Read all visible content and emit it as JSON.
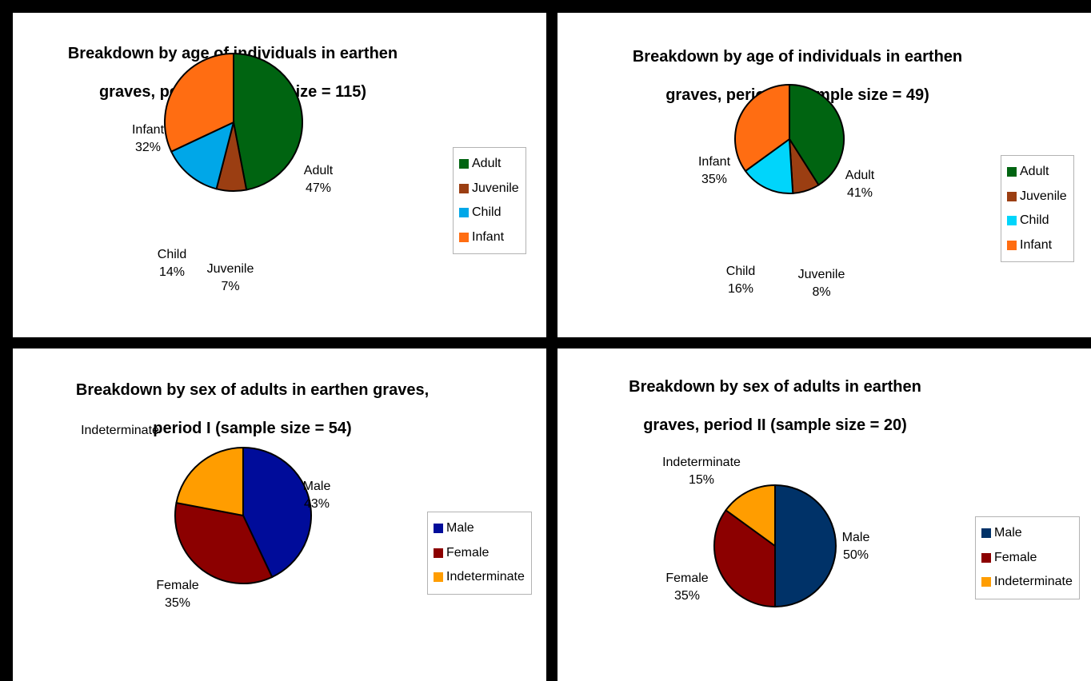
{
  "chart_data": [
    {
      "type": "pie",
      "title": "Breakdown by age of individuals in earthen graves, period I (sample size = 115)",
      "categories": [
        "Adult",
        "Juvenile",
        "Child",
        "Infant"
      ],
      "values": [
        47,
        7,
        14,
        32
      ],
      "value_labels": [
        "47%",
        "7%",
        "14%",
        "32%"
      ],
      "colors": [
        "#006411",
        "#9b3e12",
        "#00a7e8",
        "#ff6d12"
      ],
      "legend": "right"
    },
    {
      "type": "pie",
      "title": "Breakdown by age of individuals in earthen graves, period II (sample size = 49)",
      "categories": [
        "Adult",
        "Juvenile",
        "Child",
        "Infant"
      ],
      "values": [
        41,
        8,
        16,
        35
      ],
      "value_labels": [
        "41%",
        "8%",
        "16%",
        "35%"
      ],
      "colors": [
        "#006411",
        "#9b3e12",
        "#00d5fb",
        "#ff6d12"
      ],
      "legend": "right"
    },
    {
      "type": "pie",
      "title": "Breakdown by sex of adults in earthen graves, period I (sample size = 54)",
      "categories": [
        "Male",
        "Female",
        "Indeterminate"
      ],
      "values": [
        43,
        35,
        22
      ],
      "value_labels": [
        "43%",
        "35%",
        ""
      ],
      "colors": [
        "#000c9a",
        "#8c0000",
        "#ff9d00"
      ],
      "legend": "right"
    },
    {
      "type": "pie",
      "title": "Breakdown by sex of adults in earthen graves, period II (sample size = 20)",
      "categories": [
        "Male",
        "Female",
        "Indeterminate"
      ],
      "values": [
        50,
        35,
        15
      ],
      "value_labels": [
        "50%",
        "35%",
        "15%"
      ],
      "colors": [
        "#003268",
        "#8c0000",
        "#ff9d00"
      ],
      "legend": "right"
    }
  ],
  "panels": [
    {
      "title_line1": "Breakdown by age of individuals in earthen",
      "title_line2": "graves, period I (sample size = 115)"
    },
    {
      "title_line1": "Breakdown by age of individuals in earthen",
      "title_line2": "graves, period II (sample size = 49)"
    },
    {
      "title_line1": "Breakdown by sex of adults in earthen graves,",
      "title_line2": "period I (sample size = 54)"
    },
    {
      "title_line1": "Breakdown by sex of adults in earthen",
      "title_line2": "graves, period II (sample size = 20)"
    }
  ]
}
